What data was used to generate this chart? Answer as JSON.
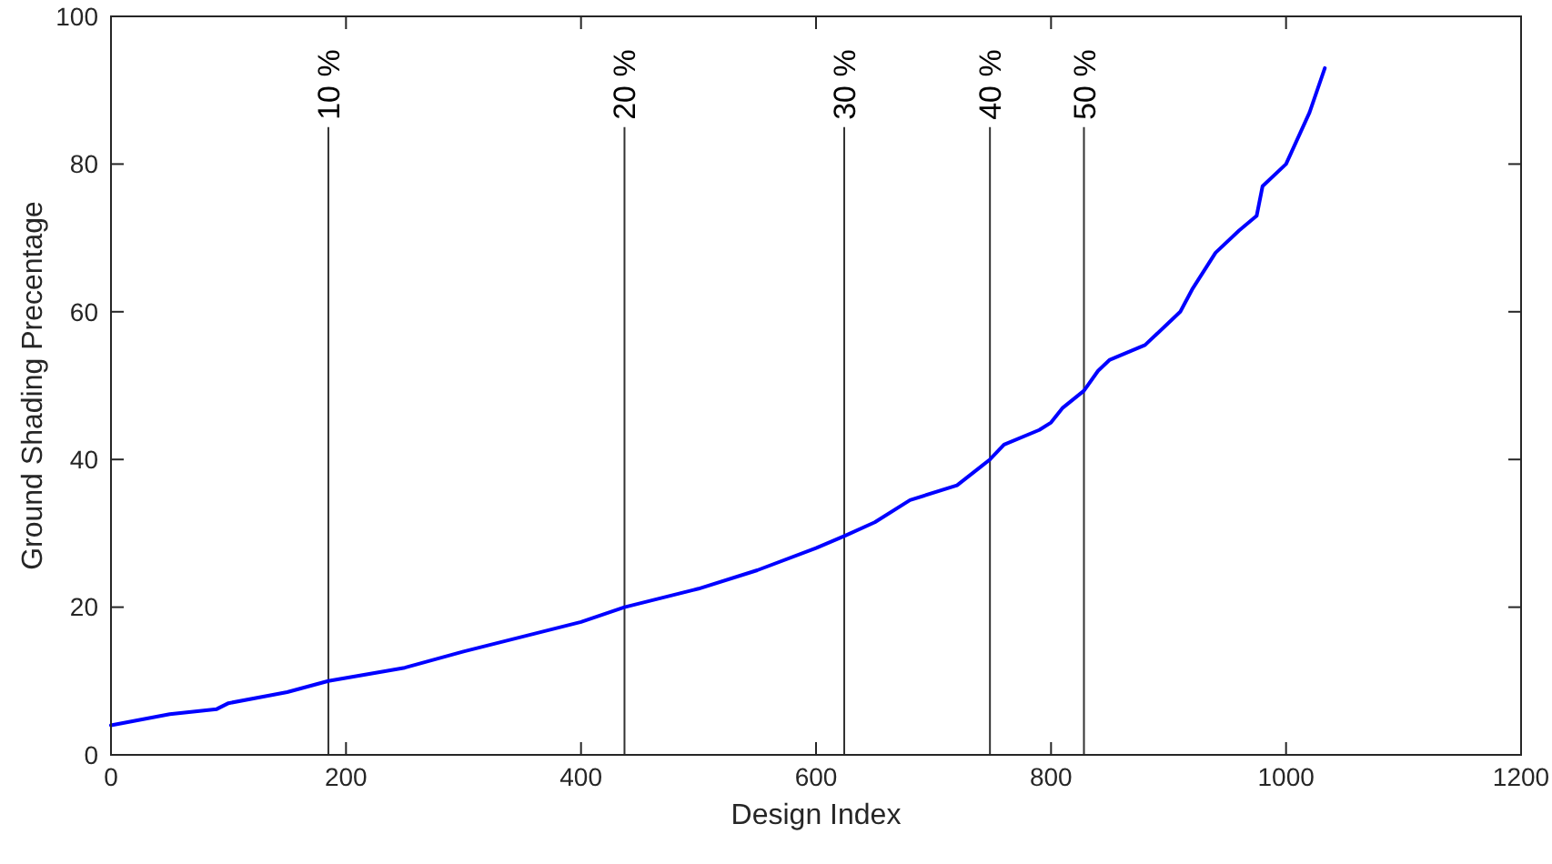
{
  "chart_data": {
    "type": "line",
    "xlabel": "Design Index",
    "ylabel": "Ground Shading Precentage",
    "xlim": [
      0,
      1200
    ],
    "xticks": [
      0,
      200,
      400,
      600,
      800,
      1000,
      1200
    ],
    "ylim": [
      0,
      100
    ],
    "yticks": [
      0,
      20,
      40,
      60,
      80,
      100
    ],
    "grid": false,
    "series": [
      {
        "color": "#0000ff",
        "x": [
          0,
          50,
          90,
          100,
          150,
          185,
          250,
          300,
          350,
          400,
          437,
          500,
          550,
          600,
          625,
          650,
          680,
          720,
          740,
          748,
          760,
          790,
          800,
          810,
          828,
          840,
          850,
          880,
          900,
          910,
          920,
          940,
          960,
          975,
          980,
          1000,
          1020,
          1033
        ],
        "values": [
          4,
          5.5,
          6.2,
          7,
          8.5,
          10,
          11.8,
          14,
          16,
          18,
          20,
          22.5,
          25,
          28,
          29.7,
          31.5,
          34.5,
          36.5,
          39,
          40,
          42,
          44,
          45,
          47,
          49.3,
          52,
          53.5,
          55.5,
          58.5,
          60,
          63,
          68,
          71,
          73,
          77,
          80,
          87,
          93
        ]
      }
    ],
    "ref_lines": [
      {
        "axis": "x",
        "value": 185,
        "color": "#333333"
      },
      {
        "axis": "x",
        "value": 437,
        "color": "#333333"
      },
      {
        "axis": "x",
        "value": 624,
        "color": "#333333"
      },
      {
        "axis": "x",
        "value": 748,
        "color": "#333333"
      },
      {
        "axis": "x",
        "value": 828,
        "color": "#333333"
      }
    ],
    "annotations": [
      {
        "text": "10 %",
        "x": 185,
        "y": 85
      },
      {
        "text": "20 %",
        "x": 437,
        "y": 85
      },
      {
        "text": "30 %",
        "x": 624,
        "y": 85
      },
      {
        "text": "40 %",
        "x": 748,
        "y": 85
      },
      {
        "text": "50 %",
        "x": 828,
        "y": 85
      }
    ]
  }
}
